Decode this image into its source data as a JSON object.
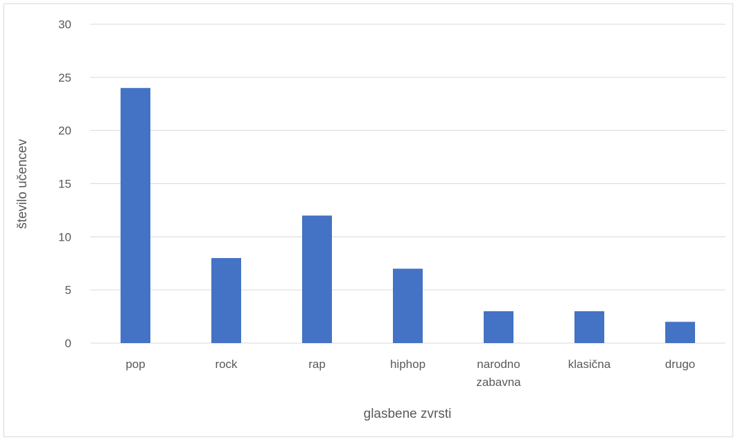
{
  "chart_data": {
    "type": "bar",
    "categories": [
      "pop",
      "rock",
      "rap",
      "hiphop",
      "narodno zabavna",
      "klasična",
      "drugo"
    ],
    "values": [
      24,
      8,
      12,
      7,
      3,
      3,
      2
    ],
    "xlabel": "glasbene zvrsti",
    "ylabel": "število učencev",
    "ylim": [
      0,
      30
    ],
    "yticks": [
      0,
      5,
      10,
      15,
      20,
      25,
      30
    ],
    "grid": true,
    "legend": "none",
    "bar_color": "#4472c4",
    "grid_color": "#d9d9d9",
    "text_color": "#595959"
  }
}
